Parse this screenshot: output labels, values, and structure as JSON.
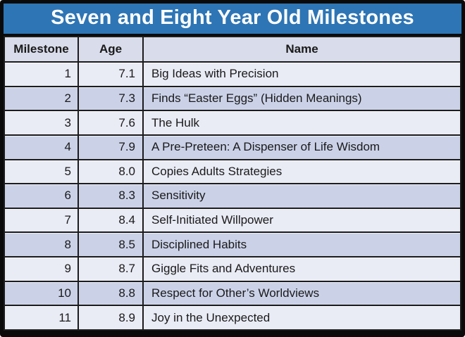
{
  "title": "Seven and Eight Year Old Milestones",
  "table": {
    "columns": [
      "Milestone",
      "Age",
      "Name"
    ],
    "rows": [
      {
        "milestone": "1",
        "age": "7.1",
        "name": "Big Ideas with Precision"
      },
      {
        "milestone": "2",
        "age": "7.3",
        "name": "Finds “Easter Eggs” (Hidden Meanings)"
      },
      {
        "milestone": "3",
        "age": "7.6",
        "name": "The Hulk"
      },
      {
        "milestone": "4",
        "age": "7.9",
        "name": "A Pre-Preteen: A Dispenser of Life Wisdom"
      },
      {
        "milestone": "5",
        "age": "8.0",
        "name": "Copies Adults Strategies"
      },
      {
        "milestone": "6",
        "age": "8.3",
        "name": "Sensitivity"
      },
      {
        "milestone": "7",
        "age": "8.4",
        "name": "Self-Initiated Willpower"
      },
      {
        "milestone": "8",
        "age": "8.5",
        "name": "Disciplined Habits"
      },
      {
        "milestone": "9",
        "age": "8.7",
        "name": "Giggle Fits and Adventures"
      },
      {
        "milestone": "10",
        "age": "8.8",
        "name": "Respect for Other’s Worldviews"
      },
      {
        "milestone": "11",
        "age": "8.9",
        "name": "Joy in the Unexpected"
      }
    ]
  },
  "colors": {
    "title_bg": "#2E75B5",
    "title_text": "#FFFFFF",
    "header_bg": "#D9DCEA",
    "row_light": "#E9EBF5",
    "row_dark": "#CBD2E8",
    "grid": "#1C1C1C",
    "frame": "#0A0A0A",
    "text": "#1A1A1A"
  }
}
